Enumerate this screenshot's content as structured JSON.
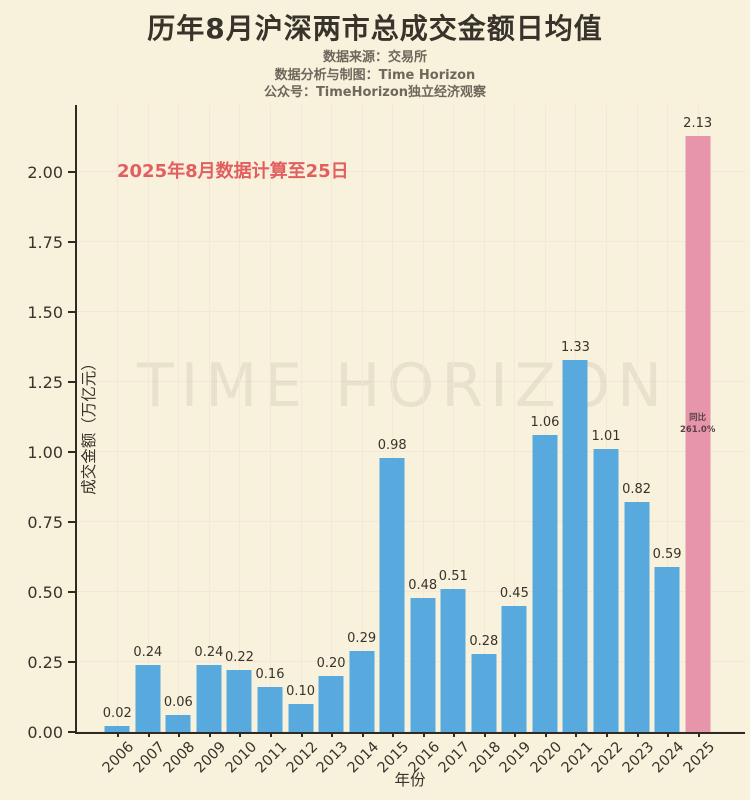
{
  "header": {
    "title": "历年8月沪深两市总成交金额日均值",
    "subtitle_lines": [
      "数据来源：交易所",
      "数据分析与制图：Time Horizon",
      "公众号：TimeHorizon独立经济观察"
    ]
  },
  "chart_data": {
    "type": "bar",
    "title": "历年8月沪深两市总成交金额日均值",
    "xlabel": "年份",
    "ylabel": "成交金额（万亿元）",
    "categories": [
      "2006",
      "2007",
      "2008",
      "2009",
      "2010",
      "2011",
      "2012",
      "2013",
      "2014",
      "2015",
      "2016",
      "2017",
      "2018",
      "2019",
      "2020",
      "2021",
      "2022",
      "2023",
      "2024",
      "2025"
    ],
    "values": [
      0.02,
      0.24,
      0.06,
      0.24,
      0.22,
      0.16,
      0.1,
      0.2,
      0.29,
      0.98,
      0.48,
      0.51,
      0.28,
      0.45,
      1.06,
      1.33,
      1.01,
      0.82,
      0.59,
      2.13
    ],
    "ylim": [
      0,
      2.24
    ],
    "ytick_step": 0.25,
    "yticks": [
      "0.00",
      "0.25",
      "0.50",
      "0.75",
      "1.00",
      "1.25",
      "1.50",
      "1.75",
      "2.00"
    ],
    "grid": true,
    "legend": "none",
    "highlight_index": 19,
    "annotation": "2025年8月数据计算至25日",
    "yoy": {
      "label": "同比",
      "value": "261.0%",
      "applies_to": "2025"
    },
    "watermark": "TIME HORIZON"
  },
  "colors": {
    "background": "#f8f1dc",
    "bar": "#57a9de",
    "highlight": "#e795aa",
    "annotation": "#e25f5f",
    "axis": "#2e2a24",
    "text_dark": "#38332b",
    "text_gray": "#6e675c",
    "yoy_text": "#5c4048"
  }
}
